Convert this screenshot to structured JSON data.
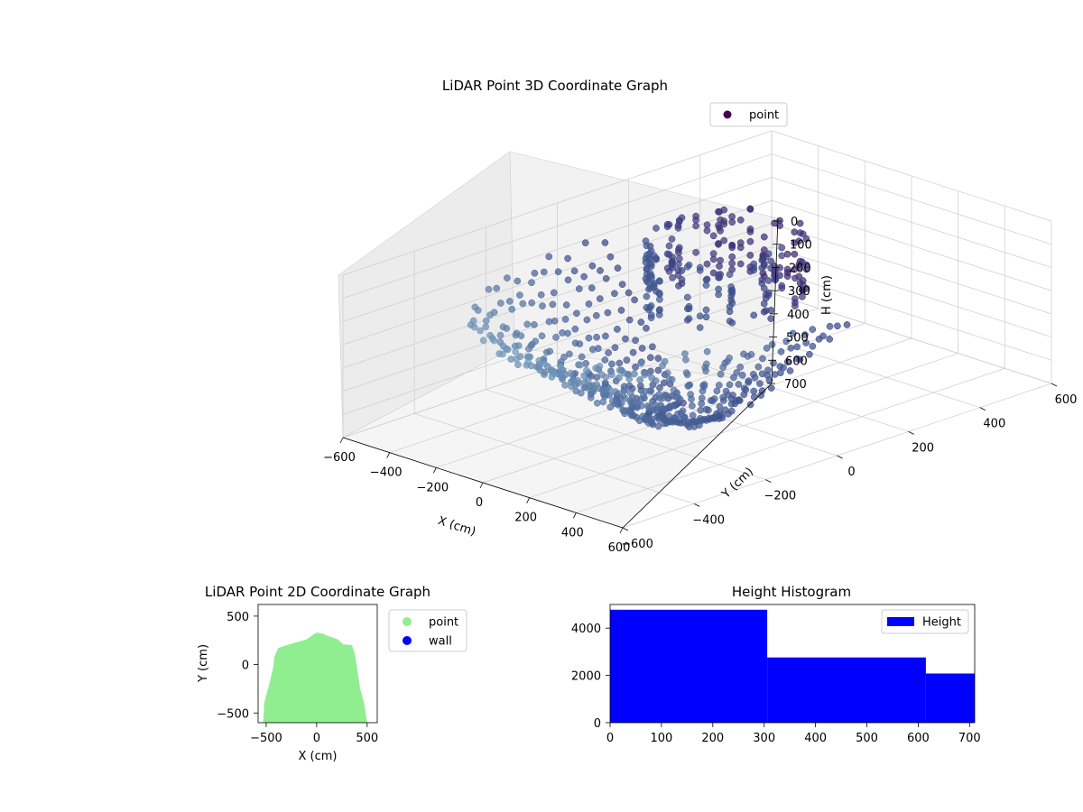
{
  "figure": {
    "colors": {
      "background": "#ffffff",
      "pane": "#f2f2f2",
      "grid": "#cccccc",
      "points_near": "#7aa6c2",
      "points_mid": "#3b4f8c",
      "points_far": "#440154",
      "scatter2d": "#90ee90",
      "wall": "#0000ff",
      "histogram": "#0000ff"
    }
  },
  "chart_data": [
    {
      "type": "scatter",
      "projection": "3d",
      "title": "LiDAR Point 3D Coordinate Graph",
      "xlabel": "X (cm)",
      "ylabel": "Y (cm)",
      "zlabel": "H (cm)",
      "xlim": [
        -600,
        600
      ],
      "ylim": [
        -600,
        600
      ],
      "zlim": [
        700,
        0
      ],
      "x_ticks": [
        "−600",
        "−400",
        "−200",
        "0",
        "200",
        "400",
        "600"
      ],
      "y_ticks": [
        "−600",
        "−400",
        "−200",
        "0",
        "200",
        "400",
        "600"
      ],
      "z_ticks": [
        "0",
        "100",
        "200",
        "300",
        "400",
        "500",
        "600",
        "700"
      ],
      "legend": {
        "position": "top-right",
        "entries": [
          {
            "label": "point",
            "color": "#440154"
          }
        ]
      },
      "grid": true,
      "series": [
        {
          "name": "point",
          "description_points": "radial lidar sweep, ~360 points sampled",
          "radius_range": [
            60,
            560
          ],
          "height_range": [
            0,
            700
          ]
        }
      ]
    },
    {
      "type": "scatter",
      "title": "LiDAR Point 2D Coordinate Graph",
      "xlabel": "X (cm)",
      "ylabel": "Y (cm)",
      "xlim": [
        -580,
        600
      ],
      "ylim": [
        -600,
        620
      ],
      "x_ticks": [
        "−500",
        "0",
        "500"
      ],
      "y_ticks": [
        "−500",
        "0",
        "500"
      ],
      "legend": {
        "position": "outside-right",
        "entries": [
          {
            "label": "point",
            "color": "#90ee90"
          },
          {
            "label": "wall",
            "color": "#0000ff"
          }
        ]
      },
      "outline": [
        [
          -530,
          -600
        ],
        [
          -520,
          -400
        ],
        [
          -470,
          -200
        ],
        [
          -430,
          -30
        ],
        [
          -420,
          80
        ],
        [
          -380,
          170
        ],
        [
          -300,
          200
        ],
        [
          -200,
          230
        ],
        [
          -100,
          260
        ],
        [
          -20,
          320
        ],
        [
          0,
          330
        ],
        [
          60,
          320
        ],
        [
          100,
          300
        ],
        [
          210,
          260
        ],
        [
          260,
          210
        ],
        [
          350,
          200
        ],
        [
          380,
          100
        ],
        [
          400,
          -30
        ],
        [
          430,
          -250
        ],
        [
          470,
          -400
        ],
        [
          500,
          -600
        ]
      ]
    },
    {
      "type": "bar",
      "subtype": "histogram",
      "title": "Height Histogram",
      "xlim": [
        0,
        710
      ],
      "ylim": [
        0,
        5000
      ],
      "x_ticks": [
        "0",
        "100",
        "200",
        "300",
        "400",
        "500",
        "600",
        "700"
      ],
      "y_ticks": [
        "0",
        "2000",
        "4000"
      ],
      "legend": {
        "position": "top-right",
        "entries": [
          {
            "label": "Height",
            "color": "#0000ff"
          }
        ]
      },
      "bins": [
        {
          "start": 0,
          "end": 306,
          "count": 4780
        },
        {
          "start": 306,
          "end": 615,
          "count": 2760
        },
        {
          "start": 615,
          "end": 710,
          "count": 2080
        }
      ]
    }
  ]
}
